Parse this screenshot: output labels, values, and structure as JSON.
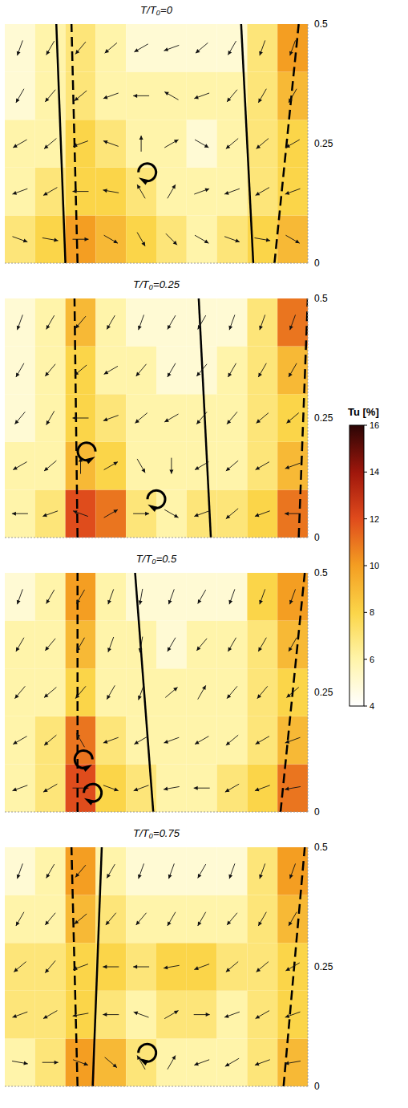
{
  "chart_data": [
    {
      "type": "vector_field",
      "title": "T/T₀=0",
      "xlim": [
        0,
        1
      ],
      "ylim": [
        0,
        0.5
      ],
      "yticks": [
        0,
        0.25,
        0.5
      ],
      "tick_labels": "y",
      "tu": {
        "x": [
          0,
          0.1,
          0.2,
          0.3,
          0.4,
          0.5,
          0.6,
          0.7,
          0.8,
          0.9,
          1.0
        ],
        "y": [
          0,
          0.1,
          0.2,
          0.3,
          0.4,
          0.5
        ],
        "values": [
          [
            7,
            8,
            10,
            9,
            8,
            7,
            6,
            7,
            8,
            9
          ],
          [
            6,
            7,
            8,
            8,
            7,
            6,
            6,
            6,
            7,
            8
          ],
          [
            6,
            6,
            8,
            7,
            6,
            6,
            5,
            6,
            7,
            8
          ],
          [
            5,
            6,
            7,
            6,
            6,
            6,
            6,
            6,
            7,
            9
          ],
          [
            5,
            6,
            7,
            6,
            5,
            5,
            5,
            5,
            7,
            10
          ]
        ]
      },
      "vector_angles": [
        [
          -20,
          -10,
          0,
          -30,
          -60,
          -45,
          -30,
          -20,
          -10,
          -30
        ],
        [
          200,
          210,
          180,
          170,
          120,
          60,
          20,
          200,
          210,
          200
        ],
        [
          210,
          220,
          200,
          160,
          90,
          30,
          -30,
          220,
          220,
          210
        ],
        [
          240,
          230,
          220,
          200,
          180,
          150,
          200,
          230,
          240,
          240
        ],
        [
          250,
          240,
          230,
          220,
          210,
          200,
          220,
          240,
          250,
          250
        ]
      ],
      "lines": [
        {
          "line_style": "solid",
          "x": [
            0.2,
            0.17
          ]
        },
        {
          "line_style": "dashed",
          "x": [
            0.24,
            0.22
          ]
        },
        {
          "line_style": "solid",
          "x": [
            0.82,
            0.78
          ]
        },
        {
          "line_style": "dashed",
          "x": [
            0.89,
            0.97
          ]
        }
      ],
      "vortices": [
        {
          "x": 0.47,
          "y": 0.19,
          "direction": "clockwise"
        }
      ]
    },
    {
      "type": "vector_field",
      "title": "T/T₀=0.25",
      "xlim": [
        0,
        1
      ],
      "ylim": [
        0,
        0.5
      ],
      "yticks": [
        0,
        0.25,
        0.5
      ],
      "tick_labels": "y",
      "tu": {
        "x": [
          0,
          0.1,
          0.2,
          0.3,
          0.4,
          0.5,
          0.6,
          0.7,
          0.8,
          0.9,
          1.0
        ],
        "y": [
          0,
          0.1,
          0.2,
          0.3,
          0.4,
          0.5
        ],
        "values": [
          [
            6,
            7,
            12,
            11,
            7,
            6,
            7,
            7,
            8,
            11
          ],
          [
            6,
            6,
            9,
            8,
            6,
            6,
            6,
            6,
            7,
            9
          ],
          [
            5,
            6,
            8,
            7,
            6,
            6,
            6,
            6,
            7,
            8
          ],
          [
            5,
            6,
            8,
            6,
            6,
            5,
            5,
            6,
            7,
            9
          ],
          [
            5,
            6,
            9,
            6,
            5,
            5,
            5,
            5,
            7,
            11
          ]
        ]
      },
      "vector_angles": [
        [
          180,
          200,
          160,
          30,
          0,
          -30,
          200,
          220,
          200,
          180
        ],
        [
          210,
          220,
          90,
          30,
          -60,
          -90,
          210,
          220,
          210,
          200
        ],
        [
          230,
          240,
          180,
          200,
          220,
          210,
          230,
          230,
          220,
          220
        ],
        [
          240,
          230,
          220,
          210,
          230,
          240,
          230,
          240,
          240,
          240
        ],
        [
          250,
          240,
          230,
          240,
          250,
          240,
          240,
          250,
          250,
          250
        ]
      ],
      "lines": [
        {
          "line_style": "dashed",
          "x": [
            0.24,
            0.23
          ]
        },
        {
          "line_style": "solid",
          "x": [
            0.68,
            0.64
          ]
        },
        {
          "line_style": "dashed",
          "x": [
            0.97,
            1.0
          ]
        }
      ],
      "vortices": [
        {
          "x": 0.27,
          "y": 0.18,
          "direction": "counterclockwise"
        },
        {
          "x": 0.5,
          "y": 0.08,
          "direction": "clockwise"
        }
      ]
    },
    {
      "type": "vector_field",
      "title": "T/T₀=0.5",
      "xlim": [
        0,
        1
      ],
      "ylim": [
        0,
        0.5
      ],
      "yticks": [
        0,
        0.25,
        0.5
      ],
      "tick_labels": "y",
      "tu": {
        "x": [
          0,
          0.1,
          0.2,
          0.3,
          0.4,
          0.5,
          0.6,
          0.7,
          0.8,
          0.9,
          1.0
        ],
        "y": [
          0,
          0.1,
          0.2,
          0.3,
          0.4,
          0.5
        ],
        "values": [
          [
            6,
            7,
            12,
            8,
            7,
            6,
            6,
            7,
            8,
            11
          ],
          [
            6,
            7,
            11,
            7,
            6,
            6,
            6,
            6,
            7,
            9
          ],
          [
            6,
            6,
            8,
            6,
            6,
            6,
            6,
            6,
            7,
            8
          ],
          [
            6,
            6,
            9,
            6,
            6,
            5,
            6,
            6,
            7,
            9
          ],
          [
            5,
            6,
            10,
            6,
            5,
            5,
            5,
            5,
            8,
            10
          ]
        ]
      },
      "vector_angles": [
        [
          200,
          210,
          0,
          -20,
          200,
          190,
          180,
          210,
          200,
          190
        ],
        [
          210,
          220,
          120,
          200,
          210,
          200,
          210,
          220,
          210,
          200
        ],
        [
          230,
          220,
          230,
          240,
          250,
          40,
          60,
          230,
          230,
          220
        ],
        [
          240,
          230,
          240,
          250,
          260,
          240,
          230,
          240,
          240,
          240
        ],
        [
          250,
          240,
          240,
          250,
          260,
          250,
          240,
          250,
          250,
          250
        ]
      ],
      "lines": [
        {
          "line_style": "dashed",
          "x": [
            0.24,
            0.24
          ]
        },
        {
          "line_style": "solid",
          "x": [
            0.49,
            0.43
          ]
        },
        {
          "line_style": "dashed",
          "x": [
            0.91,
            0.99
          ]
        }
      ],
      "vortices": [
        {
          "x": 0.26,
          "y": 0.11,
          "direction": "counterclockwise"
        },
        {
          "x": 0.29,
          "y": 0.04,
          "direction": "clockwise"
        }
      ]
    },
    {
      "type": "vector_field",
      "title": "T/T₀=0.75",
      "xlim": [
        0,
        1
      ],
      "ylim": [
        0,
        0.5
      ],
      "yticks": [
        0,
        0.25,
        0.5
      ],
      "tick_labels": "y",
      "tu": {
        "x": [
          0,
          0.1,
          0.2,
          0.3,
          0.4,
          0.5,
          0.6,
          0.7,
          0.8,
          0.9,
          1.0
        ],
        "y": [
          0,
          0.1,
          0.2,
          0.3,
          0.4,
          0.5
        ],
        "values": [
          [
            6,
            7,
            10,
            9,
            7,
            6,
            6,
            6,
            7,
            9
          ],
          [
            7,
            7,
            8,
            7,
            6,
            7,
            7,
            6,
            7,
            8
          ],
          [
            7,
            7,
            8,
            8,
            7,
            8,
            8,
            7,
            7,
            8
          ],
          [
            6,
            6,
            9,
            7,
            6,
            6,
            6,
            6,
            7,
            9
          ],
          [
            5,
            6,
            10,
            6,
            5,
            5,
            5,
            5,
            7,
            10
          ]
        ]
      },
      "vector_angles": [
        [
          -10,
          0,
          -20,
          -40,
          120,
          60,
          200,
          210,
          200,
          190
        ],
        [
          200,
          210,
          190,
          180,
          160,
          30,
          0,
          200,
          210,
          200
        ],
        [
          220,
          230,
          200,
          180,
          180,
          190,
          200,
          220,
          220,
          210
        ],
        [
          240,
          230,
          220,
          230,
          230,
          240,
          240,
          230,
          240,
          240
        ],
        [
          250,
          240,
          230,
          240,
          250,
          250,
          240,
          250,
          250,
          250
        ]
      ],
      "lines": [
        {
          "line_style": "dashed",
          "x": [
            0.24,
            0.22
          ]
        },
        {
          "line_style": "solid",
          "x": [
            0.29,
            0.32
          ]
        },
        {
          "line_style": "dashed",
          "x": [
            0.92,
            0.99
          ]
        }
      ],
      "vortices": [
        {
          "x": 0.47,
          "y": 0.07,
          "direction": "clockwise"
        }
      ]
    }
  ],
  "colorbar": {
    "label": "Tu [%]",
    "range": [
      4,
      16
    ],
    "ticks": [
      4,
      6,
      8,
      10,
      12,
      14,
      16
    ]
  }
}
